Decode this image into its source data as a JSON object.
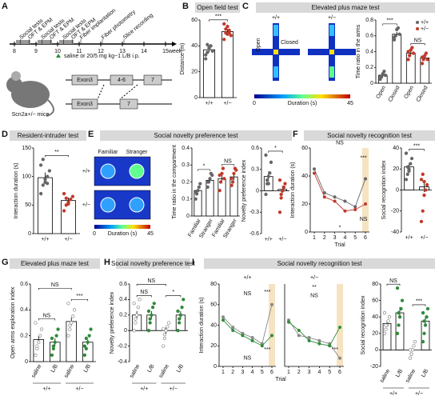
{
  "panels": [
    {
      "letter": "A"
    },
    {
      "letter": "B",
      "title": "Open field test"
    },
    {
      "letter": "C",
      "title": "Elevated plus maze test"
    },
    {
      "letter": "D",
      "title": "Resident-intruder test"
    },
    {
      "letter": "E",
      "title": "Social novelty preference test"
    },
    {
      "letter": "F",
      "title": "Social novelty recognition test"
    },
    {
      "letter": "G",
      "title": "Elevated plus maze test"
    },
    {
      "letter": "H",
      "title": "Social novelty preference test"
    },
    {
      "letter": "I",
      "title": "Social novelty recognition test"
    }
  ],
  "timeline": {
    "unit": "week",
    "weeks": [
      8,
      9,
      10,
      11,
      12,
      13,
      14,
      15
    ],
    "events": [
      {
        "label": "Social tests",
        "week": 8.2
      },
      {
        "label": "OFT & EPM",
        "week": 8.6
      },
      {
        "label": "Social tests",
        "week": 9.2
      },
      {
        "label": "OFT & EPM",
        "week": 9.6
      },
      {
        "label": "Social tests",
        "week": 10.2
      },
      {
        "label": "OFT & EPM",
        "week": 10.6
      },
      {
        "label": "Fiber implantation",
        "week": 11
      },
      {
        "label": "Fiber photometry",
        "week": 12
      },
      {
        "label": "Slice recording",
        "week": 13
      }
    ],
    "legend": "saline or 20/5 mg kg−1 L/B i.p.",
    "mouse": "Scn2a+/− mice",
    "gene": {
      "wt": [
        "Exon3",
        "4-6",
        "7"
      ],
      "ko": [
        "Exon3",
        "7"
      ]
    }
  },
  "heatmaps": {
    "c": {
      "genotypes": [
        "+/+",
        "+/−"
      ],
      "arms": [
        "Open",
        "Closed"
      ],
      "colorbar": {
        "min": 0,
        "max": 45,
        "label": "Duration (s)"
      }
    },
    "e": {
      "genotypes": [
        "+/+",
        "+/−"
      ],
      "sides": [
        "Familiar",
        "Stranger"
      ],
      "colorbar": {
        "min": 0,
        "max": 45,
        "label": "Duration (s)"
      }
    }
  },
  "chart_data": [
    {
      "type": "bar",
      "ylabel": "Distance (m)",
      "categories": [
        "+/+",
        "+/−"
      ],
      "values": [
        37,
        51
      ],
      "errors": [
        2,
        2
      ],
      "colors": [
        "#666",
        "#c0392b"
      ],
      "markers": [
        "filled",
        "filled"
      ],
      "ylim": [
        0,
        60
      ],
      "yticks": [
        0,
        20,
        40,
        60
      ],
      "points": [
        [
          30,
          35,
          38,
          40,
          36,
          33,
          41,
          39
        ],
        [
          45,
          50,
          55,
          52,
          48,
          57,
          53,
          49,
          50
        ]
      ],
      "annotations": [
        {
          "text": "***",
          "bars": [
            0,
            1
          ]
        }
      ]
    },
    {
      "type": "bar",
      "ylabel": "Time ratio in the arms",
      "categories": [
        "Open",
        "Closed",
        "Open",
        "Closed"
      ],
      "values": [
        0.1,
        0.62,
        0.38,
        0.32
      ],
      "errors": [
        0.02,
        0.03,
        0.03,
        0.02
      ],
      "colors": [
        "#666",
        "#666",
        "#c0392b",
        "#c0392b"
      ],
      "markers": [
        "filled",
        "filled",
        "filled",
        "filled"
      ],
      "ylim": [
        0,
        0.8
      ],
      "yticks": [
        0,
        0.2,
        0.4,
        0.6,
        0.8
      ],
      "points": [
        [
          0.05,
          0.08,
          0.12,
          0.15,
          0.1,
          0.09
        ],
        [
          0.55,
          0.6,
          0.68,
          0.7,
          0.62,
          0.58
        ],
        [
          0.3,
          0.35,
          0.42,
          0.45,
          0.38,
          0.4
        ],
        [
          0.25,
          0.3,
          0.35,
          0.38,
          0.3,
          0.33
        ]
      ],
      "annotations": [
        {
          "text": "***",
          "bars": [
            0,
            1
          ]
        },
        {
          "text": "NS",
          "bars": [
            2,
            3
          ]
        }
      ],
      "legend": [
        {
          "name": "+/+",
          "color": "#666"
        },
        {
          "name": "+/−",
          "color": "#c0392b"
        }
      ]
    },
    {
      "type": "bar",
      "ylabel": "Interaction duration (s)",
      "categories": [
        "+/+",
        "+/−"
      ],
      "values": [
        98,
        58
      ],
      "errors": [
        9,
        5
      ],
      "colors": [
        "#666",
        "#c0392b"
      ],
      "markers": [
        "filled",
        "filled"
      ],
      "ylim": [
        0,
        150
      ],
      "yticks": [
        0,
        50,
        100,
        150
      ],
      "points": [
        [
          70,
          85,
          95,
          100,
          110,
          120,
          130,
          90,
          88
        ],
        [
          40,
          50,
          55,
          60,
          65,
          70,
          62,
          52
        ]
      ],
      "annotations": [
        {
          "text": "**",
          "bars": [
            0,
            1
          ]
        }
      ]
    },
    {
      "type": "bar",
      "ylabel": "Time ratio in the compartment",
      "categories": [
        "Familiar",
        "Stranger",
        "Familiar",
        "Stranger"
      ],
      "values": [
        0.15,
        0.21,
        0.22,
        0.23
      ],
      "errors": [
        0.01,
        0.01,
        0.02,
        0.02
      ],
      "colors": [
        "#666",
        "#666",
        "#c0392b",
        "#c0392b"
      ],
      "markers": [
        "filled",
        "filled",
        "filled",
        "filled"
      ],
      "ylim": [
        0,
        0.4
      ],
      "yticks": [
        0,
        0.1,
        0.2,
        0.3,
        0.4
      ],
      "points": [
        [
          0.1,
          0.13,
          0.15,
          0.17,
          0.19,
          0.14
        ],
        [
          0.17,
          0.2,
          0.22,
          0.25,
          0.24,
          0.2
        ],
        [
          0.15,
          0.2,
          0.25,
          0.28,
          0.22,
          0.24
        ],
        [
          0.18,
          0.2,
          0.25,
          0.28,
          0.27,
          0.22
        ]
      ],
      "annotations": [
        {
          "text": "*",
          "bars": [
            0,
            1
          ]
        },
        {
          "text": "NS",
          "bars": [
            2,
            3
          ]
        }
      ]
    },
    {
      "type": "bar",
      "ylabel": "Novelty preference index",
      "categories": [
        "+/+",
        "+/−"
      ],
      "values": [
        0.2,
        0.02
      ],
      "errors": [
        0.07,
        0.05
      ],
      "colors": [
        "#666",
        "#c0392b"
      ],
      "markers": [
        "filled",
        "filled"
      ],
      "ylim": [
        -0.6,
        0.6
      ],
      "yticks": [
        -0.6,
        -0.3,
        0,
        0.3,
        0.6
      ],
      "points": [
        [
          -0.05,
          0.1,
          0.2,
          0.25,
          0.4,
          0.5,
          0.15,
          0.1
        ],
        [
          -0.3,
          -0.1,
          0,
          0.05,
          0.1,
          0.15,
          -0.05,
          0
        ]
      ],
      "annotations": [
        {
          "text": "*",
          "bars": [
            0,
            1
          ]
        }
      ]
    },
    {
      "type": "line",
      "ylabel": "Interaction duration (s)",
      "xlabel": "Trial",
      "x": [
        1,
        2,
        3,
        4,
        5,
        6
      ],
      "xticks": [
        1,
        2,
        3,
        4,
        5,
        6
      ],
      "ylim": [
        0,
        60
      ],
      "yticks": [
        0,
        20,
        40,
        60
      ],
      "series": [
        {
          "name": "+/+",
          "color": "#666",
          "values": [
            45,
            28,
            25,
            22,
            18,
            38
          ]
        },
        {
          "name": "+/−",
          "color": "#c0392b",
          "values": [
            42,
            25,
            22,
            15,
            16,
            20
          ]
        }
      ],
      "annotations": [
        "NS",
        "***",
        "NS",
        "*"
      ]
    },
    {
      "type": "bar",
      "ylabel": "Social recognition index",
      "categories": [
        "+/+",
        "+/−"
      ],
      "values": [
        22,
        3
      ],
      "errors": [
        3,
        5
      ],
      "colors": [
        "#666",
        "#c0392b"
      ],
      "markers": [
        "filled",
        "filled"
      ],
      "ylim": [
        -40,
        40
      ],
      "yticks": [
        -40,
        -20,
        0,
        20,
        40
      ],
      "points": [
        [
          10,
          15,
          20,
          25,
          30,
          35,
          22,
          18
        ],
        [
          -30,
          -20,
          -5,
          0,
          5,
          10,
          15,
          8
        ]
      ],
      "annotations": [
        {
          "text": "***",
          "bars": [
            0,
            1
          ]
        }
      ]
    },
    {
      "type": "bar",
      "ylabel": "Open arms exploration index",
      "categories": [
        "saline",
        "L/B",
        "saline",
        "L/B"
      ],
      "groups": [
        "+/+",
        "+/−"
      ],
      "values": [
        0.17,
        0.15,
        0.31,
        0.15
      ],
      "errors": [
        0.03,
        0.03,
        0.03,
        0.02
      ],
      "colors": [
        "#888",
        "#2e8b3a",
        "#888",
        "#2e8b3a"
      ],
      "markers": [
        "open",
        "filled",
        "open",
        "filled"
      ],
      "ylim": [
        0,
        0.6
      ],
      "yticks": [
        0,
        0.2,
        0.4,
        0.6
      ],
      "points": [
        [
          0.05,
          0.1,
          0.15,
          0.2,
          0.25,
          0.3,
          0.12
        ],
        [
          0.05,
          0.1,
          0.15,
          0.2,
          0.25,
          0.18,
          0.12
        ],
        [
          0.2,
          0.25,
          0.3,
          0.35,
          0.4,
          0.45,
          0.28
        ],
        [
          0.05,
          0.1,
          0.15,
          0.2,
          0.25,
          0.12,
          0.18
        ]
      ],
      "annotations": [
        {
          "text": "NS",
          "bars": [
            0,
            1
          ]
        },
        {
          "text": "***",
          "bars": [
            2,
            3
          ]
        },
        {
          "text": "NS",
          "bars": [
            0,
            2
          ]
        }
      ]
    },
    {
      "type": "bar",
      "ylabel": "Novelty preference index",
      "categories": [
        "saline",
        "L/B",
        "saline",
        "L/B"
      ],
      "groups": [
        "+/+",
        "+/−"
      ],
      "values": [
        0.2,
        0.2,
        0,
        0.2
      ],
      "errors": [
        0.05,
        0.05,
        0.04,
        0.05
      ],
      "colors": [
        "#888",
        "#2e8b3a",
        "#888",
        "#2e8b3a"
      ],
      "markers": [
        "open",
        "filled",
        "open",
        "filled"
      ],
      "ylim": [
        -0.4,
        0.6
      ],
      "yticks": [
        -0.4,
        -0.2,
        0,
        0.2,
        0.4,
        0.6
      ],
      "points": [
        [
          0,
          0.1,
          0.2,
          0.3,
          0.4,
          0.35,
          0.15
        ],
        [
          0,
          0.1,
          0.2,
          0.3,
          0.35,
          0.25,
          0.15
        ],
        [
          -0.2,
          -0.1,
          0,
          0.05,
          0.1,
          0.02,
          -0.05
        ],
        [
          0,
          0.1,
          0.2,
          0.3,
          0.4,
          0.25,
          0.15
        ]
      ],
      "annotations": [
        {
          "text": "NS",
          "bars": [
            0,
            1
          ]
        },
        {
          "text": "*",
          "bars": [
            2,
            3
          ]
        },
        {
          "text": "NS",
          "bars": [
            0,
            2
          ]
        }
      ]
    },
    {
      "type": "line",
      "title": "+/+",
      "ylabel": "Interaction duration (s)",
      "x": [
        1,
        2,
        3,
        4,
        5,
        6
      ],
      "xticks": [
        1,
        2,
        3,
        4,
        5,
        6
      ],
      "ylim": [
        0,
        80
      ],
      "yticks": [
        0,
        20,
        40,
        60,
        80
      ],
      "series": [
        {
          "name": "saline",
          "color": "#888",
          "values": [
            48,
            38,
            32,
            28,
            22,
            60
          ]
        },
        {
          "name": "L/B",
          "color": "#2e8b3a",
          "values": [
            45,
            35,
            30,
            25,
            20,
            30
          ]
        }
      ],
      "annotations": [
        "NS",
        "***",
        "NS",
        "***"
      ]
    },
    {
      "type": "line",
      "title": "+/−",
      "xlabel": "Trial",
      "x": [
        1,
        2,
        3,
        4,
        5,
        6
      ],
      "xticks": [
        1,
        2,
        3,
        4,
        5,
        6
      ],
      "ylim": [
        0,
        80
      ],
      "series": [
        {
          "name": "saline",
          "color": "#888",
          "values": [
            45,
            30,
            28,
            25,
            22,
            8
          ]
        },
        {
          "name": "L/B",
          "color": "#2e8b3a",
          "values": [
            43,
            35,
            25,
            22,
            20,
            38
          ]
        }
      ],
      "annotations": [
        "**",
        "NS",
        "***"
      ]
    },
    {
      "type": "bar",
      "ylabel": "Social recognition index",
      "categories": [
        "saline",
        "L/B",
        "saline",
        "L/B"
      ],
      "groups": [
        "+/+",
        "+/−"
      ],
      "values": [
        32,
        45,
        0,
        35
      ],
      "errors": [
        4,
        7,
        2,
        6
      ],
      "colors": [
        "#888",
        "#2e8b3a",
        "#888",
        "#2e8b3a"
      ],
      "markers": [
        "open",
        "filled",
        "open",
        "filled"
      ],
      "ylim": [
        -20,
        80
      ],
      "yticks": [
        -20,
        0,
        20,
        40,
        60,
        80
      ],
      "points": [
        [
          20,
          25,
          30,
          35,
          40,
          45,
          30
        ],
        [
          20,
          30,
          40,
          50,
          60,
          75,
          45
        ],
        [
          -10,
          -5,
          0,
          5,
          10,
          0,
          -5
        ],
        [
          10,
          20,
          30,
          40,
          50,
          45,
          35
        ]
      ],
      "annotations": [
        {
          "text": "NS",
          "bars": [
            0,
            1
          ]
        },
        {
          "text": "***",
          "bars": [
            2,
            3
          ]
        }
      ]
    }
  ]
}
